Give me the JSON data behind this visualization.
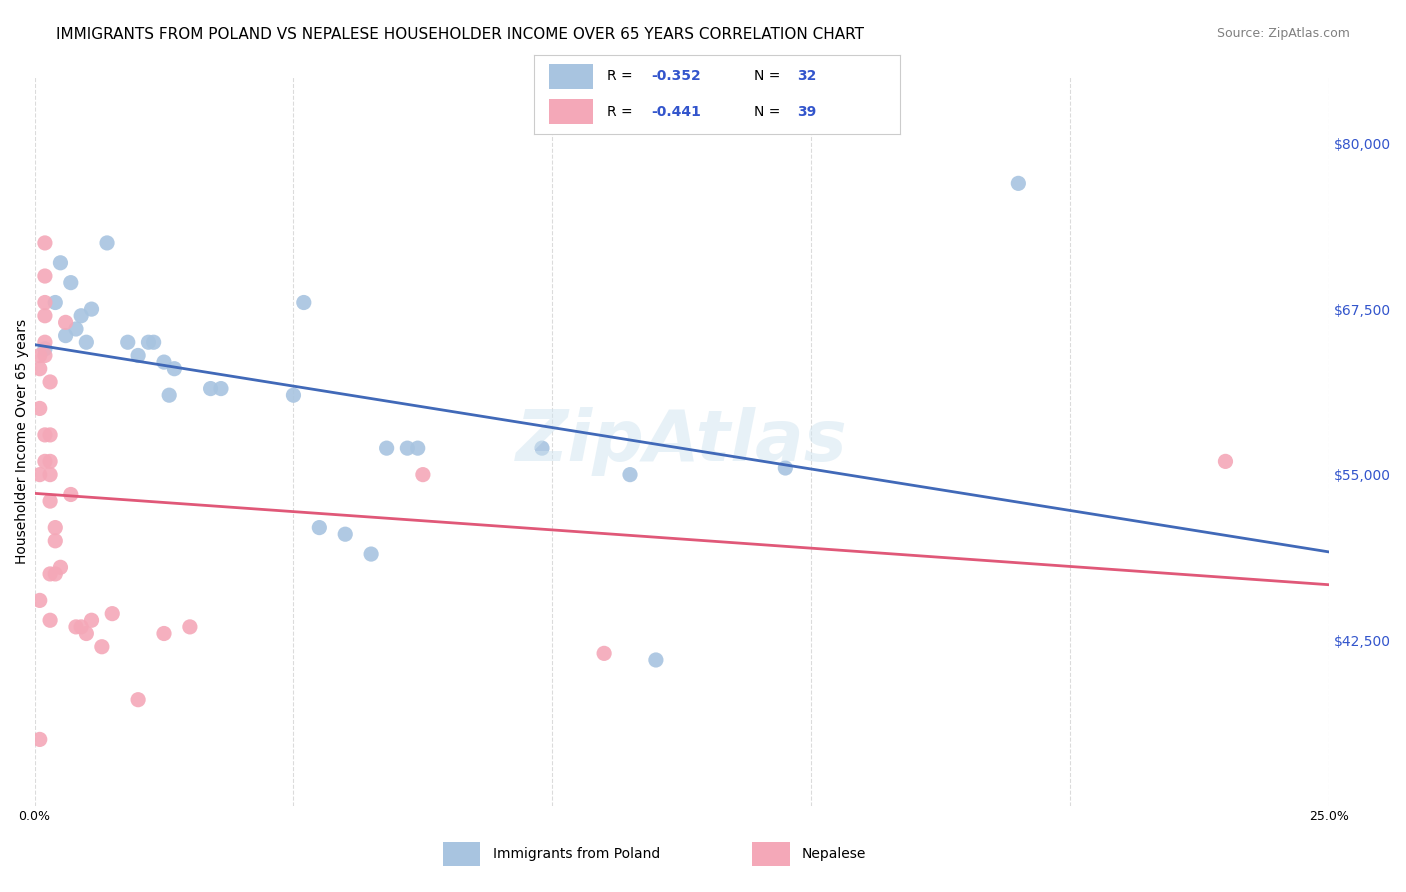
{
  "title": "IMMIGRANTS FROM POLAND VS NEPALESE HOUSEHOLDER INCOME OVER 65 YEARS CORRELATION CHART",
  "source": "Source: ZipAtlas.com",
  "xlabel": "",
  "ylabel": "Householder Income Over 65 years",
  "xlim": [
    0.0,
    0.25
  ],
  "ylim": [
    30000,
    85000
  ],
  "yticks": [
    42500,
    55000,
    67500,
    80000
  ],
  "ytick_labels": [
    "$42,500",
    "$55,000",
    "$67,500",
    "$80,000"
  ],
  "xticks": [
    0.0,
    0.05,
    0.1,
    0.15,
    0.2,
    0.25
  ],
  "xtick_labels": [
    "0.0%",
    "",
    "",
    "",
    "",
    "25.0%"
  ],
  "legend_R1": "R = -0.352",
  "legend_N1": "N = 32",
  "legend_R2": "R = -0.441",
  "legend_N2": "N = 39",
  "legend_label1": "Immigrants from Poland",
  "legend_label2": "Nepalese",
  "blue_color": "#a8c4e0",
  "pink_color": "#f4a8b8",
  "blue_line_color": "#4169b8",
  "pink_line_color": "#e05878",
  "blue_scatter": [
    [
      0.002,
      64500
    ],
    [
      0.004,
      68000
    ],
    [
      0.005,
      71000
    ],
    [
      0.006,
      65500
    ],
    [
      0.007,
      69500
    ],
    [
      0.008,
      66000
    ],
    [
      0.009,
      67000
    ],
    [
      0.01,
      65000
    ],
    [
      0.011,
      67500
    ],
    [
      0.014,
      72500
    ],
    [
      0.018,
      65000
    ],
    [
      0.02,
      64000
    ],
    [
      0.022,
      65000
    ],
    [
      0.023,
      65000
    ],
    [
      0.025,
      63500
    ],
    [
      0.026,
      61000
    ],
    [
      0.027,
      63000
    ],
    [
      0.034,
      61500
    ],
    [
      0.036,
      61500
    ],
    [
      0.05,
      61000
    ],
    [
      0.052,
      68000
    ],
    [
      0.055,
      51000
    ],
    [
      0.06,
      50500
    ],
    [
      0.065,
      49000
    ],
    [
      0.068,
      57000
    ],
    [
      0.072,
      57000
    ],
    [
      0.074,
      57000
    ],
    [
      0.098,
      57000
    ],
    [
      0.115,
      55000
    ],
    [
      0.12,
      41000
    ],
    [
      0.145,
      55500
    ],
    [
      0.19,
      77000
    ]
  ],
  "pink_scatter": [
    [
      0.001,
      35000
    ],
    [
      0.001,
      45500
    ],
    [
      0.001,
      55000
    ],
    [
      0.001,
      60000
    ],
    [
      0.001,
      63000
    ],
    [
      0.001,
      64000
    ],
    [
      0.002,
      56000
    ],
    [
      0.002,
      58000
    ],
    [
      0.002,
      64000
    ],
    [
      0.002,
      65000
    ],
    [
      0.002,
      67000
    ],
    [
      0.002,
      68000
    ],
    [
      0.002,
      70000
    ],
    [
      0.002,
      72500
    ],
    [
      0.003,
      44000
    ],
    [
      0.003,
      47500
    ],
    [
      0.003,
      53000
    ],
    [
      0.003,
      55000
    ],
    [
      0.003,
      56000
    ],
    [
      0.003,
      58000
    ],
    [
      0.003,
      62000
    ],
    [
      0.004,
      47500
    ],
    [
      0.004,
      50000
    ],
    [
      0.004,
      51000
    ],
    [
      0.005,
      48000
    ],
    [
      0.006,
      66500
    ],
    [
      0.007,
      53500
    ],
    [
      0.008,
      43500
    ],
    [
      0.009,
      43500
    ],
    [
      0.01,
      43000
    ],
    [
      0.011,
      44000
    ],
    [
      0.013,
      42000
    ],
    [
      0.015,
      44500
    ],
    [
      0.02,
      38000
    ],
    [
      0.025,
      43000
    ],
    [
      0.03,
      43500
    ],
    [
      0.075,
      55000
    ],
    [
      0.11,
      41500
    ],
    [
      0.23,
      56000
    ]
  ],
  "background_color": "#ffffff",
  "grid_color": "#cccccc",
  "title_fontsize": 11,
  "axis_label_fontsize": 10,
  "tick_label_fontsize": 9,
  "watermark": "ZipAtlas",
  "watermark_color": "#d0e4f0",
  "watermark_alpha": 0.5
}
